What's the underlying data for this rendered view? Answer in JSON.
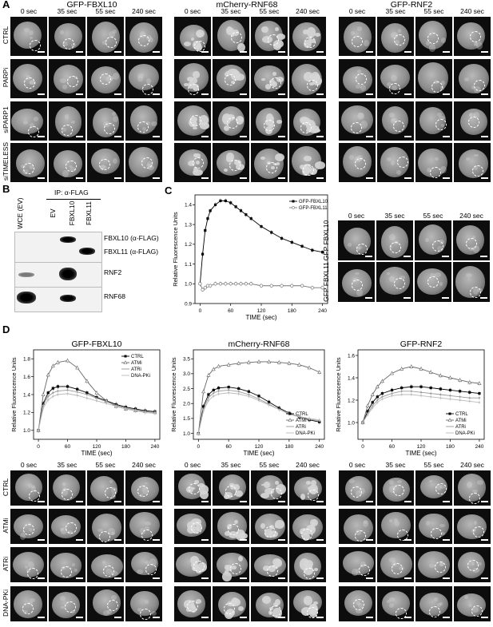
{
  "panels": {
    "A": "A",
    "B": "B",
    "C": "C",
    "D": "D"
  },
  "panel_a": {
    "groups": [
      "GFP-FBXL10",
      "mCherry-RNF68",
      "GFP-RNF2"
    ],
    "times": [
      "0 sec",
      "35 sec",
      "55 sec",
      "240 sec"
    ],
    "rows": [
      "CTRL",
      "PARPi",
      "siPARP1",
      "siTIMELESS"
    ]
  },
  "panel_b": {
    "ip_label": "IP: α-FLAG",
    "lanes": [
      "WCE (EV)",
      "EV",
      "FBXL10",
      "FBXL11"
    ],
    "blot_labels": [
      "FBXL10 (α-FLAG)",
      "FBXL11 (α-FLAG)",
      "RNF2",
      "RNF68"
    ]
  },
  "panel_c_images": {
    "times": [
      "0 sec",
      "35 sec",
      "55 sec",
      "240 sec"
    ],
    "rows": [
      "GFP FBXL10",
      "GFP FBXL11"
    ]
  },
  "panel_d_images": {
    "times": [
      "0 sec",
      "35 sec",
      "55 sec",
      "240 sec"
    ],
    "rows": [
      "CTRL",
      "ATMi",
      "ATRi",
      "DNA-PKi"
    ]
  },
  "chart_data": [
    {
      "id": "C",
      "type": "line",
      "title": "",
      "xlabel": "TIME (sec)",
      "ylabel": "Relative Fluorescence Units",
      "xlim": [
        -10,
        250
      ],
      "ylim": [
        0.9,
        1.45
      ],
      "xticks": [
        0,
        60,
        120,
        180,
        240
      ],
      "yticks": [
        0.9,
        1.0,
        1.1,
        1.2,
        1.3,
        1.4
      ],
      "ytick_labels": [
        "0.9",
        "1.0",
        "1.1",
        "1.2",
        "1.3",
        "1.4"
      ],
      "legend": "top-right",
      "series": [
        {
          "name": "GFP-FBXL10",
          "color": "#000000",
          "marker": "filled-square",
          "x": [
            0,
            5,
            10,
            15,
            20,
            30,
            40,
            50,
            60,
            70,
            80,
            90,
            100,
            120,
            140,
            160,
            180,
            200,
            220,
            240
          ],
          "y": [
            1.0,
            1.15,
            1.27,
            1.33,
            1.37,
            1.4,
            1.42,
            1.42,
            1.41,
            1.39,
            1.37,
            1.35,
            1.33,
            1.29,
            1.26,
            1.23,
            1.21,
            1.19,
            1.17,
            1.16
          ]
        },
        {
          "name": "GFP-FBXL11",
          "color": "#777777",
          "marker": "open-circle",
          "x": [
            0,
            5,
            10,
            15,
            20,
            30,
            40,
            50,
            60,
            70,
            80,
            90,
            100,
            120,
            140,
            160,
            180,
            200,
            220,
            240
          ],
          "y": [
            1.0,
            0.97,
            0.98,
            0.99,
            0.99,
            1.0,
            1.0,
            1.0,
            1.0,
            1.0,
            1.0,
            1.0,
            1.0,
            0.99,
            0.99,
            0.99,
            0.99,
            0.99,
            0.98,
            0.98
          ]
        }
      ]
    },
    {
      "id": "D1",
      "type": "line",
      "title": "GFP-FBXL10",
      "xlabel": "TIME (sec)",
      "ylabel": "Relative Fluorescence Units",
      "xlim": [
        -10,
        250
      ],
      "ylim": [
        0.9,
        1.9
      ],
      "xticks": [
        0,
        60,
        120,
        180,
        240
      ],
      "yticks": [
        1.0,
        1.2,
        1.4,
        1.6,
        1.8
      ],
      "ytick_labels": [
        "1.0",
        "1.2",
        "1.4",
        "1.6",
        "1.8"
      ],
      "legend": "top-right",
      "series": [
        {
          "name": "CTRL",
          "color": "#000000",
          "marker": "filled-square",
          "x": [
            0,
            10,
            20,
            30,
            40,
            60,
            80,
            100,
            120,
            140,
            160,
            180,
            200,
            220,
            240
          ],
          "y": [
            1.0,
            1.3,
            1.42,
            1.47,
            1.49,
            1.49,
            1.46,
            1.42,
            1.37,
            1.33,
            1.29,
            1.26,
            1.24,
            1.22,
            1.21
          ]
        },
        {
          "name": "ATMi",
          "color": "#666666",
          "marker": "triangle",
          "x": [
            0,
            10,
            20,
            30,
            40,
            60,
            80,
            100,
            120,
            140,
            160,
            180,
            200,
            220,
            240
          ],
          "y": [
            1.0,
            1.4,
            1.62,
            1.72,
            1.76,
            1.78,
            1.7,
            1.55,
            1.42,
            1.33,
            1.27,
            1.24,
            1.22,
            1.21,
            1.2
          ]
        },
        {
          "name": "ATRi",
          "color": "#999999",
          "marker": "none",
          "x": [
            0,
            10,
            20,
            30,
            40,
            60,
            80,
            100,
            120,
            140,
            160,
            180,
            200,
            220,
            240
          ],
          "y": [
            1.0,
            1.28,
            1.38,
            1.42,
            1.44,
            1.45,
            1.43,
            1.4,
            1.36,
            1.32,
            1.28,
            1.25,
            1.23,
            1.21,
            1.2
          ]
        },
        {
          "name": "DNA-PKi",
          "color": "#bbbbbb",
          "marker": "none",
          "x": [
            0,
            10,
            20,
            30,
            40,
            60,
            80,
            100,
            120,
            140,
            160,
            180,
            200,
            220,
            240
          ],
          "y": [
            1.0,
            1.25,
            1.34,
            1.38,
            1.4,
            1.41,
            1.39,
            1.36,
            1.33,
            1.3,
            1.27,
            1.24,
            1.22,
            1.2,
            1.19
          ]
        }
      ]
    },
    {
      "id": "D2",
      "type": "line",
      "title": "mCherry-RNF68",
      "xlabel": "TIME (sec)",
      "ylabel": "Relative Fluorescence Units",
      "xlim": [
        -10,
        250
      ],
      "ylim": [
        0.8,
        3.8
      ],
      "xticks": [
        0,
        60,
        120,
        180,
        240
      ],
      "yticks": [
        1.0,
        1.5,
        2.0,
        2.5,
        3.0,
        3.5
      ],
      "ytick_labels": [
        "1.0",
        "1.5",
        "2.0",
        "2.5",
        "3.0",
        "3.5"
      ],
      "legend": "bottom-right",
      "series": [
        {
          "name": "CTRL",
          "color": "#000000",
          "marker": "filled-square",
          "x": [
            0,
            10,
            20,
            30,
            40,
            60,
            80,
            100,
            120,
            140,
            160,
            180,
            200,
            220,
            240
          ],
          "y": [
            1.0,
            1.9,
            2.3,
            2.45,
            2.52,
            2.55,
            2.5,
            2.4,
            2.25,
            2.05,
            1.85,
            1.68,
            1.55,
            1.45,
            1.38
          ]
        },
        {
          "name": "ATMi",
          "color": "#666666",
          "marker": "triangle",
          "x": [
            0,
            10,
            20,
            30,
            40,
            60,
            80,
            100,
            120,
            140,
            160,
            180,
            200,
            220,
            240
          ],
          "y": [
            1.0,
            2.4,
            2.95,
            3.15,
            3.25,
            3.3,
            3.35,
            3.38,
            3.4,
            3.4,
            3.38,
            3.35,
            3.3,
            3.2,
            3.05
          ]
        },
        {
          "name": "ATRi",
          "color": "#999999",
          "marker": "none",
          "x": [
            0,
            10,
            20,
            30,
            40,
            60,
            80,
            100,
            120,
            140,
            160,
            180,
            200,
            220,
            240
          ],
          "y": [
            1.0,
            1.8,
            2.2,
            2.35,
            2.42,
            2.45,
            2.4,
            2.3,
            2.15,
            1.98,
            1.8,
            1.65,
            1.55,
            1.47,
            1.42
          ]
        },
        {
          "name": "DNA-PKi",
          "color": "#bbbbbb",
          "marker": "none",
          "x": [
            0,
            10,
            20,
            30,
            40,
            60,
            80,
            100,
            120,
            140,
            160,
            180,
            200,
            220,
            240
          ],
          "y": [
            1.0,
            1.75,
            2.1,
            2.25,
            2.32,
            2.36,
            2.32,
            2.24,
            2.1,
            1.95,
            1.8,
            1.67,
            1.57,
            1.5,
            1.45
          ]
        }
      ]
    },
    {
      "id": "D3",
      "type": "line",
      "title": "GFP-RNF2",
      "xlabel": "TIME (sec)",
      "ylabel": "Relative Fluorescence Units",
      "xlim": [
        -10,
        250
      ],
      "ylim": [
        0.85,
        1.65
      ],
      "xticks": [
        0,
        60,
        120,
        180,
        240
      ],
      "yticks": [
        1.0,
        1.2,
        1.4,
        1.6
      ],
      "ytick_labels": [
        "1.0",
        "1.2",
        "1.4",
        "1.6"
      ],
      "legend": "bottom-right",
      "series": [
        {
          "name": "CTRL",
          "color": "#000000",
          "marker": "filled-square",
          "x": [
            0,
            10,
            20,
            30,
            40,
            60,
            80,
            100,
            120,
            140,
            160,
            180,
            200,
            220,
            240
          ],
          "y": [
            1.0,
            1.1,
            1.18,
            1.23,
            1.26,
            1.29,
            1.31,
            1.32,
            1.32,
            1.31,
            1.3,
            1.29,
            1.28,
            1.27,
            1.26
          ]
        },
        {
          "name": "ATMi",
          "color": "#666666",
          "marker": "triangle",
          "x": [
            0,
            10,
            20,
            30,
            40,
            60,
            80,
            100,
            120,
            140,
            160,
            180,
            200,
            220,
            240
          ],
          "y": [
            1.0,
            1.15,
            1.25,
            1.32,
            1.37,
            1.44,
            1.48,
            1.5,
            1.48,
            1.45,
            1.42,
            1.4,
            1.38,
            1.36,
            1.35
          ]
        },
        {
          "name": "ATRi",
          "color": "#999999",
          "marker": "none",
          "x": [
            0,
            10,
            20,
            30,
            40,
            60,
            80,
            100,
            120,
            140,
            160,
            180,
            200,
            220,
            240
          ],
          "y": [
            1.0,
            1.08,
            1.15,
            1.2,
            1.23,
            1.26,
            1.28,
            1.28,
            1.27,
            1.26,
            1.25,
            1.24,
            1.23,
            1.22,
            1.22
          ]
        },
        {
          "name": "DNA-PKi",
          "color": "#bbbbbb",
          "marker": "none",
          "x": [
            0,
            10,
            20,
            30,
            40,
            60,
            80,
            100,
            120,
            140,
            160,
            180,
            200,
            220,
            240
          ],
          "y": [
            1.0,
            1.07,
            1.13,
            1.18,
            1.21,
            1.24,
            1.25,
            1.25,
            1.24,
            1.23,
            1.22,
            1.21,
            1.2,
            1.19,
            1.18
          ]
        }
      ]
    }
  ]
}
